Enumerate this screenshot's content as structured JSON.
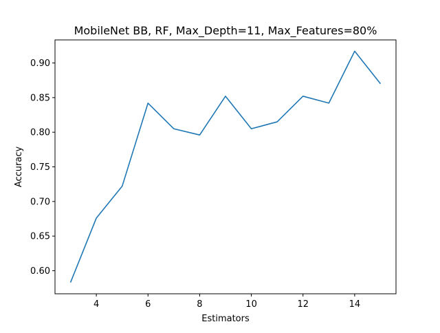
{
  "chart_data": {
    "type": "line",
    "title": "MobileNet BB, RF, Max_Depth=11, Max_Features=80%",
    "xlabel": "Estimators",
    "ylabel": "Accuracy",
    "xlim": [
      2.4,
      15.6
    ],
    "ylim": [
      0.5667,
      0.9333
    ],
    "xticks": [
      4,
      6,
      8,
      10,
      12,
      14
    ],
    "yticks": [
      0.6,
      0.65,
      0.7,
      0.75,
      0.8,
      0.85,
      0.9
    ],
    "xtick_labels": [
      "4",
      "6",
      "8",
      "10",
      "12",
      "14"
    ],
    "ytick_labels": [
      "0.60",
      "0.65",
      "0.70",
      "0.75",
      "0.80",
      "0.85",
      "0.90"
    ],
    "grid": false,
    "series": [
      {
        "color": "#1f77b4",
        "x": [
          3,
          4,
          5,
          6,
          7,
          8,
          9,
          10,
          11,
          12,
          13,
          14,
          15
        ],
        "y": [
          0.583,
          0.676,
          0.722,
          0.842,
          0.805,
          0.796,
          0.852,
          0.805,
          0.815,
          0.852,
          0.842,
          0.917,
          0.87
        ]
      }
    ]
  }
}
